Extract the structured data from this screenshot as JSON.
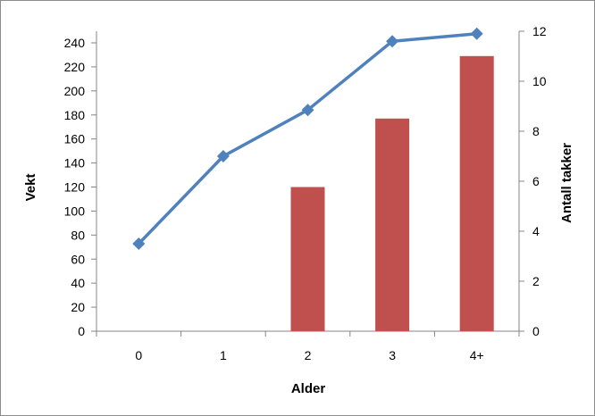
{
  "chart_data": {
    "type": "bar+line",
    "categories": [
      "0",
      "1",
      "2",
      "3",
      "4+"
    ],
    "xlabel": "Alder",
    "ylabel_left": "Vekt",
    "ylabel_right": "Antall takker",
    "left_axis": {
      "range": [
        0,
        250
      ],
      "ticks": [
        "0",
        "20",
        "40",
        "60",
        "80",
        "100",
        "120",
        "140",
        "160",
        "180",
        "200",
        "220",
        "240"
      ]
    },
    "right_axis": {
      "range": [
        0,
        12
      ],
      "ticks": [
        "0",
        "2",
        "4",
        "6",
        "8",
        "10",
        "12"
      ]
    },
    "bar_series": {
      "axis": "left",
      "color": "#c0504d",
      "values": [
        null,
        null,
        120,
        177,
        229
      ]
    },
    "line_series": {
      "axis": "right",
      "color": "#4f81bd",
      "marker": "diamond",
      "values": [
        3.5,
        7.0,
        8.85,
        11.6,
        11.9
      ]
    },
    "grid": false,
    "legend": "none"
  }
}
